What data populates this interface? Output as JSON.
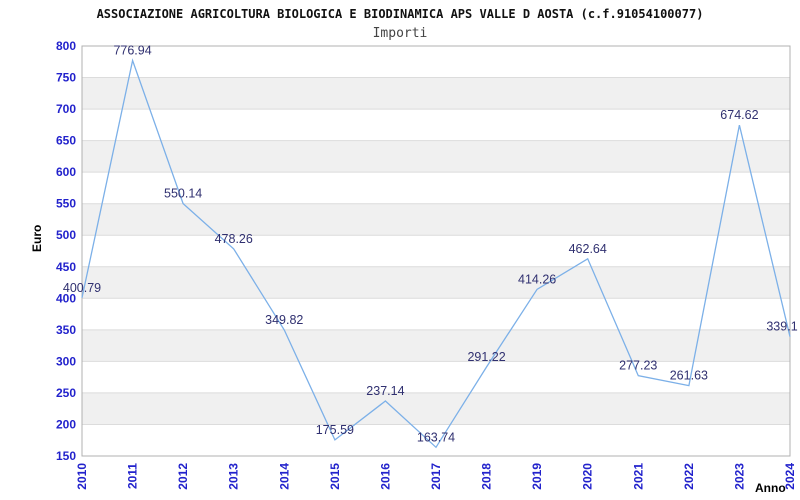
{
  "chart_data": {
    "type": "line",
    "title": "ASSOCIAZIONE AGRICOLTURA BIOLOGICA E BIODINAMICA APS VALLE D AOSTA (c.f.91054100077)",
    "subtitle": "Importi",
    "xlabel": "Anno",
    "ylabel": "Euro",
    "categories": [
      "2010",
      "2011",
      "2012",
      "2013",
      "2014",
      "2015",
      "2016",
      "2017",
      "2018",
      "2019",
      "2020",
      "2021",
      "2022",
      "2023",
      "2024"
    ],
    "values": [
      400.79,
      776.94,
      550.14,
      478.26,
      349.82,
      175.59,
      237.14,
      163.74,
      291.22,
      414.26,
      462.64,
      277.23,
      261.63,
      674.62,
      339.1
    ],
    "point_labels": [
      "400.79",
      "776.94",
      "550.14",
      "478.26",
      "349.82",
      "175.59",
      "237.14",
      "163.74",
      "291.22",
      "414.26",
      "462.64",
      "277.23",
      "261.63",
      "674.62",
      "339.1"
    ],
    "ylim": [
      150,
      800
    ],
    "ytick_step": 50,
    "grid": true,
    "legend": "none",
    "colors": {
      "line": "#7cb0e8",
      "tick_label": "#2222cc",
      "data_label": "#303070",
      "band": "#f0f0f0",
      "gridline": "#dcdcdc",
      "border": "#b0b0b0",
      "title": "#111111",
      "subtitle": "#444444"
    }
  }
}
